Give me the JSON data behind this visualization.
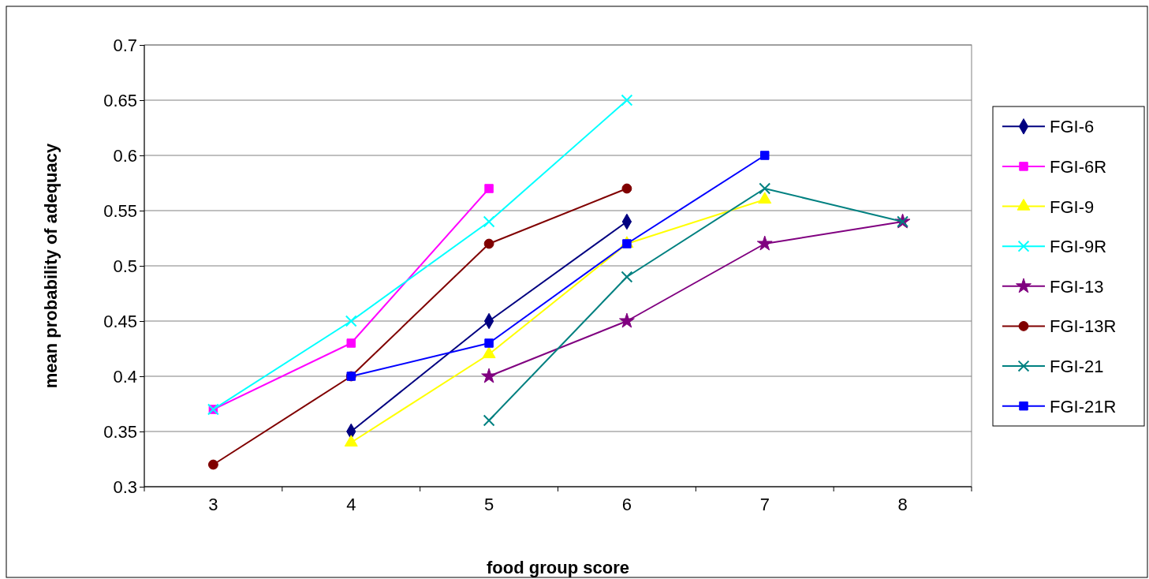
{
  "chart_data": {
    "type": "line",
    "xlabel": "food group score",
    "ylabel": "mean probability of adequacy",
    "categories": [
      "3",
      "4",
      "5",
      "6",
      "7",
      "8"
    ],
    "ylim": [
      0.3,
      0.7
    ],
    "yticks": [
      0.3,
      0.35,
      0.4,
      0.45,
      0.5,
      0.55,
      0.6,
      0.65,
      0.7
    ],
    "grid": "y",
    "legend": "right",
    "line_style": "solid",
    "series": [
      {
        "name": "FGI-6",
        "color": "#000080",
        "marker": "diamond",
        "values": [
          null,
          0.35,
          0.45,
          0.54,
          null,
          null
        ]
      },
      {
        "name": "FGI-6R",
        "color": "#ff00ff",
        "marker": "square",
        "values": [
          0.37,
          0.43,
          0.57,
          null,
          null,
          null
        ]
      },
      {
        "name": "FGI-9",
        "color": "#ffff00",
        "marker": "triangle",
        "values": [
          null,
          0.34,
          0.42,
          0.52,
          0.56,
          null
        ]
      },
      {
        "name": "FGI-9R",
        "color": "#00ffff",
        "marker": "cross",
        "values": [
          0.37,
          0.45,
          0.54,
          0.65,
          null,
          null
        ]
      },
      {
        "name": "FGI-13",
        "color": "#800080",
        "marker": "star",
        "values": [
          null,
          null,
          0.4,
          0.45,
          0.52,
          0.54
        ]
      },
      {
        "name": "FGI-13R",
        "color": "#800000",
        "marker": "circle",
        "values": [
          0.32,
          0.4,
          0.52,
          0.57,
          null,
          null
        ]
      },
      {
        "name": "FGI-21",
        "color": "#008080",
        "marker": "cross",
        "values": [
          null,
          null,
          0.36,
          0.49,
          0.57,
          0.54
        ]
      },
      {
        "name": "FGI-21R",
        "color": "#0000ff",
        "marker": "square",
        "values": [
          null,
          0.4,
          0.43,
          0.52,
          0.6,
          null
        ]
      }
    ]
  }
}
